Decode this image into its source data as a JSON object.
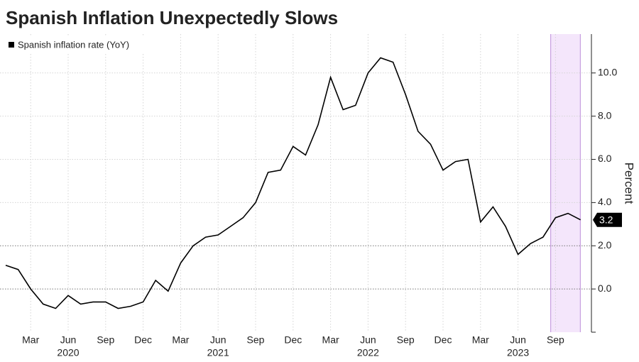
{
  "chart_data": {
    "type": "line",
    "title": "Spanish Inflation Unexpectedly Slows",
    "y_axis_label": "Percent",
    "categories": [
      null,
      null,
      "Mar",
      null,
      null,
      "Jun",
      null,
      null,
      "Sep",
      null,
      null,
      "Dec",
      null,
      null,
      "Mar",
      null,
      null,
      "Jun",
      null,
      null,
      "Sep",
      null,
      null,
      "Dec",
      null,
      null,
      "Mar",
      null,
      null,
      "Jun",
      null,
      null,
      "Sep",
      null,
      null,
      "Dec",
      null,
      null,
      "Mar",
      null,
      null,
      "Jun",
      null,
      null,
      "Sep",
      null,
      null
    ],
    "years": [
      "2020",
      "2021",
      "2022",
      "2023"
    ],
    "series": [
      {
        "name": "Spanish inflation rate (YoY)",
        "color": "#000000",
        "values": [
          1.1,
          0.9,
          0.0,
          -0.7,
          -0.9,
          -0.3,
          -0.7,
          -0.6,
          -0.6,
          -0.9,
          -0.8,
          -0.6,
          0.4,
          -0.1,
          1.2,
          2.0,
          2.4,
          2.5,
          2.9,
          3.3,
          4.0,
          5.4,
          5.5,
          6.6,
          6.2,
          7.6,
          9.8,
          8.3,
          8.5,
          10.0,
          10.7,
          10.5,
          9.0,
          7.3,
          6.7,
          5.5,
          5.9,
          6.0,
          3.1,
          3.8,
          2.9,
          1.6,
          2.1,
          2.4,
          3.3,
          3.5,
          3.2
        ]
      }
    ],
    "ylim": [
      -2,
      11.8
    ],
    "yticks": [
      {
        "value": 0,
        "label": "0.0"
      },
      {
        "value": 2,
        "label": "2.0"
      },
      {
        "value": 4,
        "label": "4.0"
      },
      {
        "value": 6,
        "label": "6.0"
      },
      {
        "value": 8,
        "label": "8.0"
      },
      {
        "value": 10,
        "label": "10.0"
      }
    ],
    "grid": true,
    "highlight_last_points": 3,
    "highlight_color": "#f4e6fb",
    "highlight_border": "#c8a0e0"
  }
}
